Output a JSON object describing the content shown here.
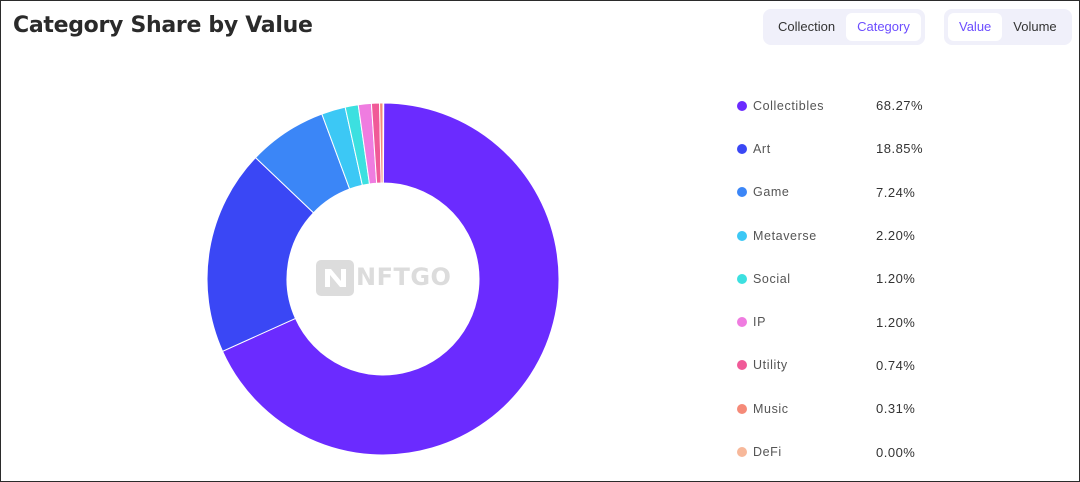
{
  "header": {
    "title": "Category Share by Value",
    "group_toggle": {
      "options": [
        "Collection",
        "Category"
      ],
      "active": "Category"
    },
    "metric_toggle": {
      "options": [
        "Value",
        "Volume"
      ],
      "active": "Value"
    }
  },
  "watermark": {
    "brand": "NFTGO"
  },
  "colors": {
    "Collectibles": "#6b2bff",
    "Art": "#3a47f5",
    "Game": "#3b86f7",
    "Metaverse": "#3cc8f5",
    "Social": "#3ce0e0",
    "IP": "#ef7ce0",
    "Utility": "#f05a98",
    "Music": "#f58a78",
    "DeFi": "#f7b89a"
  },
  "chart_data": {
    "type": "pie",
    "variant": "donut",
    "title": "Category Share by Value",
    "categories": [
      "Collectibles",
      "Art",
      "Game",
      "Metaverse",
      "Social",
      "IP",
      "Utility",
      "Music",
      "DeFi"
    ],
    "values": [
      68.27,
      18.85,
      7.24,
      2.2,
      1.2,
      1.2,
      0.74,
      0.31,
      0.0
    ],
    "labels": [
      "68.27%",
      "18.85%",
      "7.24%",
      "2.20%",
      "1.20%",
      "1.20%",
      "0.74%",
      "0.31%",
      "0.00%"
    ],
    "legend_position": "right"
  }
}
